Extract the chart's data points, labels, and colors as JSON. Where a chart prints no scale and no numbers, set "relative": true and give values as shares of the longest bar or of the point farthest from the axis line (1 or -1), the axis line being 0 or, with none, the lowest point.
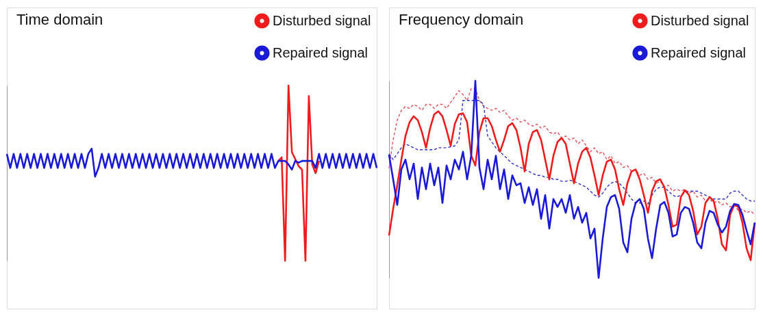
{
  "chart_data": [
    {
      "type": "line",
      "title": "Time domain",
      "relative": true,
      "tick_labels": false,
      "legend": "top right",
      "categories": [
        null,
        null,
        null,
        null,
        null,
        null,
        null,
        null,
        null,
        null,
        null,
        null,
        null,
        null,
        null,
        null,
        null,
        null,
        null,
        null,
        null,
        null,
        null,
        null,
        null,
        null,
        null,
        null,
        null,
        null,
        null,
        null,
        null,
        null,
        null,
        null,
        null,
        null,
        null,
        null,
        null,
        null,
        null,
        null,
        null,
        null,
        null,
        null,
        null,
        null,
        null,
        null,
        null,
        null,
        null,
        null,
        null,
        null,
        null,
        null,
        null,
        null,
        null,
        null,
        null,
        null,
        null,
        null,
        null,
        null,
        null,
        null,
        null,
        null,
        null,
        null,
        null,
        null,
        null,
        null,
        null,
        null,
        null,
        null,
        null,
        null,
        null,
        null,
        null,
        null,
        null,
        null,
        null,
        null,
        null,
        null,
        null,
        null,
        null,
        null,
        null,
        null,
        null,
        null,
        null,
        null,
        null,
        null,
        null,
        null
      ],
      "series": [
        {
          "name": "Disturbed signal",
          "color": "#ee1c1c",
          "line_style": "solid",
          "values": [
            null,
            null,
            null,
            null,
            null,
            null,
            null,
            null,
            null,
            null,
            null,
            null,
            null,
            null,
            null,
            null,
            null,
            null,
            null,
            null,
            null,
            null,
            null,
            null,
            null,
            null,
            null,
            null,
            null,
            null,
            null,
            null,
            null,
            null,
            null,
            null,
            null,
            null,
            null,
            null,
            null,
            null,
            null,
            null,
            null,
            null,
            null,
            null,
            null,
            null,
            null,
            null,
            null,
            null,
            null,
            null,
            null,
            null,
            null,
            null,
            null,
            null,
            null,
            null,
            null,
            null,
            null,
            null,
            null,
            null,
            null,
            null,
            null,
            null,
            null,
            null,
            null,
            null,
            null,
            null,
            0.57,
            0.59,
            0,
            1,
            0.62,
            0.58,
            0.54,
            0.52,
            0,
            0.94,
            0.55,
            0.5,
            0.57,
            null,
            null,
            null,
            null,
            null,
            null,
            null,
            null,
            null,
            null,
            null,
            null,
            null,
            null,
            null,
            null,
            null
          ]
        },
        {
          "name": "Repaired signal",
          "color": "#1a1ad6",
          "line_style": "solid",
          "values": [
            0.61,
            0.53,
            0.61,
            0.53,
            0.61,
            0.53,
            0.61,
            0.53,
            0.61,
            0.53,
            0.61,
            0.53,
            0.61,
            0.53,
            0.61,
            0.53,
            0.61,
            0.53,
            0.61,
            0.53,
            0.61,
            0.53,
            0.61,
            0.53,
            0.61,
            0.64,
            0.48,
            0.53,
            0.61,
            0.53,
            0.61,
            0.53,
            0.61,
            0.53,
            0.61,
            0.53,
            0.61,
            0.53,
            0.61,
            0.53,
            0.61,
            0.53,
            0.61,
            0.53,
            0.61,
            0.53,
            0.61,
            0.53,
            0.61,
            0.53,
            0.61,
            0.53,
            0.61,
            0.53,
            0.61,
            0.53,
            0.61,
            0.53,
            0.61,
            0.53,
            0.61,
            0.53,
            0.61,
            0.53,
            0.61,
            0.53,
            0.61,
            0.53,
            0.61,
            0.53,
            0.61,
            0.53,
            0.61,
            0.53,
            0.61,
            0.53,
            0.61,
            0.53,
            0.61,
            0.53,
            0.57,
            0.57,
            0.57,
            0.55,
            0.52,
            0.57,
            0.56,
            0.57,
            0.57,
            0.57,
            0.57,
            0.53,
            0.61,
            0.53,
            0.61,
            0.53,
            0.61,
            0.53,
            0.61,
            0.53,
            0.61,
            0.53,
            0.61,
            0.53,
            0.61,
            0.53,
            0.61,
            0.53,
            0.61,
            0.53
          ]
        }
      ]
    },
    {
      "type": "line",
      "title": "Frequency domain",
      "relative": true,
      "tick_labels": false,
      "legend": "top right",
      "categories": [
        null,
        null,
        null,
        null,
        null,
        null,
        null,
        null,
        null,
        null,
        null,
        null,
        null,
        null,
        null,
        null,
        null,
        null,
        null,
        null,
        null,
        null,
        null,
        null,
        null,
        null,
        null,
        null,
        null,
        null,
        null,
        null,
        null,
        null,
        null,
        null,
        null,
        null,
        null,
        null,
        null,
        null,
        null,
        null,
        null,
        null,
        null,
        null,
        null,
        null,
        null,
        null,
        null,
        null,
        null,
        null,
        null,
        null,
        null,
        null,
        null,
        null,
        null,
        null,
        null,
        null,
        null,
        null,
        null,
        null,
        null,
        null,
        null,
        null,
        null,
        null,
        null,
        null,
        null,
        null,
        null,
        null,
        null,
        null,
        null,
        null,
        null,
        null,
        null,
        null
      ],
      "series": [
        {
          "color": "#e0505a",
          "line_style": "dashed",
          "values": [
            0.556,
            0.7,
            0.8,
            0.85,
            0.87,
            0.86,
            0.88,
            0.87,
            0.85,
            0.88,
            0.88,
            0.86,
            0.88,
            0.88,
            0.86,
            0.89,
            0.92,
            0.95,
            0.93,
            0.9,
            0.96,
            0.96,
            0.9,
            0.87,
            0.86,
            0.85,
            0.86,
            0.84,
            0.85,
            0.82,
            0.8,
            0.81,
            0.79,
            0.8,
            0.78,
            0.77,
            0.78,
            0.76,
            0.77,
            0.74,
            0.73,
            0.74,
            0.71,
            0.72,
            0.7,
            0.71,
            0.68,
            0.7,
            0.67,
            0.64,
            0.66,
            0.63,
            0.64,
            0.6,
            0.62,
            0.58,
            0.59,
            0.56,
            0.57,
            0.54,
            0.55,
            0.52,
            0.53,
            0.5,
            0.51,
            0.48,
            0.49,
            0.46,
            0.47,
            0.44,
            0.45,
            0.44,
            0.45,
            0.43,
            0.44,
            0.41,
            0.42,
            0.39,
            0.4,
            0.38,
            0.39,
            0.37,
            0.38,
            0.36,
            0.37,
            0.34,
            0.35,
            0.33,
            0.34,
            0.32
          ]
        },
        {
          "color": "#3030c8",
          "line_style": "dashed",
          "values": [
            0.63,
            0.6,
            0.63,
            0.66,
            0.68,
            0.67,
            0.66,
            0.65,
            0.65,
            0.65,
            0.65,
            0.65,
            0.66,
            0.66,
            0.66,
            0.665,
            0.67,
            0.7,
            0.9,
            0.9,
            0.9,
            0.9,
            0.9,
            0.88,
            0.72,
            0.69,
            0.66,
            0.64,
            0.62,
            0.6,
            0.58,
            0.57,
            0.56,
            0.55,
            0.54,
            0.53,
            0.52,
            0.52,
            0.51,
            0.51,
            0.5,
            0.5,
            0.49,
            0.49,
            0.495,
            0.49,
            0.48,
            0.47,
            0.46,
            0.44,
            0.42,
            0.41,
            0.43,
            0.46,
            0.48,
            0.49,
            0.48,
            0.46,
            0.43,
            0.4,
            0.38,
            0.38,
            0.39,
            0.375,
            0.42,
            0.45,
            0.46,
            0.46,
            0.44,
            0.42,
            0.41,
            0.42,
            0.43,
            0.44,
            0.44,
            0.44,
            0.43,
            0.42,
            0.41,
            0.4,
            0.4,
            0.4,
            0.4,
            0.43,
            0.44,
            0.44,
            0.42,
            0.4,
            0.39,
            0.39
          ]
        },
        {
          "name": "Disturbed signal",
          "color": "#ee1c1c",
          "line_style": "solid",
          "values": [
            0.215,
            0.35,
            0.47,
            0.6,
            0.72,
            0.79,
            0.82,
            0.8,
            0.74,
            0.66,
            0.76,
            0.83,
            0.845,
            0.82,
            0.75,
            0.67,
            0.78,
            0.83,
            0.835,
            0.79,
            0.62,
            0.57,
            0.74,
            0.81,
            0.81,
            0.77,
            0.7,
            0.64,
            0.7,
            0.77,
            0.785,
            0.75,
            0.66,
            0.54,
            0.68,
            0.74,
            0.75,
            0.7,
            0.6,
            0.5,
            0.62,
            0.69,
            0.71,
            0.68,
            0.58,
            0.48,
            0.58,
            0.64,
            0.66,
            0.61,
            0.52,
            0.42,
            0.52,
            0.59,
            0.6,
            0.55,
            0.45,
            0.37,
            0.48,
            0.54,
            0.55,
            0.5,
            0.42,
            0.33,
            0.44,
            0.49,
            0.5,
            0.46,
            0.37,
            0.26,
            0.27,
            0.41,
            0.445,
            0.42,
            0.34,
            0.22,
            0.26,
            0.38,
            0.41,
            0.39,
            0.3,
            0.17,
            0.14,
            0.32,
            0.37,
            0.36,
            0.28,
            0.15,
            0.09,
            0.28
          ]
        },
        {
          "name": "Repaired signal",
          "color": "#1a1ad6",
          "line_style": "solid",
          "values": [
            0.625,
            0.5,
            0.37,
            0.55,
            0.6,
            0.5,
            0.58,
            0.4,
            0.56,
            0.45,
            0.58,
            0.47,
            0.56,
            0.38,
            0.57,
            0.5,
            0.6,
            0.55,
            0.64,
            0.5,
            0.62,
            1.0,
            0.56,
            0.45,
            0.6,
            0.5,
            0.62,
            0.45,
            0.55,
            0.4,
            0.52,
            0.47,
            0.48,
            0.38,
            0.46,
            0.37,
            0.45,
            0.3,
            0.42,
            0.25,
            0.4,
            0.36,
            0.4,
            0.33,
            0.42,
            0.3,
            0.36,
            0.28,
            0.33,
            0.2,
            0.25,
            0,
            0.2,
            0.36,
            0.41,
            0.42,
            0.35,
            0.18,
            0.13,
            0.3,
            0.38,
            0.4,
            0.35,
            0.2,
            0.1,
            0.25,
            0.37,
            0.385,
            0.33,
            0.21,
            0.22,
            0.33,
            0.36,
            0.35,
            0.28,
            0.18,
            0.15,
            0.28,
            0.34,
            0.33,
            0.27,
            0.23,
            0.26,
            0.34,
            0.375,
            0.37,
            0.32,
            0.24,
            0.17,
            0.28
          ]
        }
      ]
    }
  ]
}
